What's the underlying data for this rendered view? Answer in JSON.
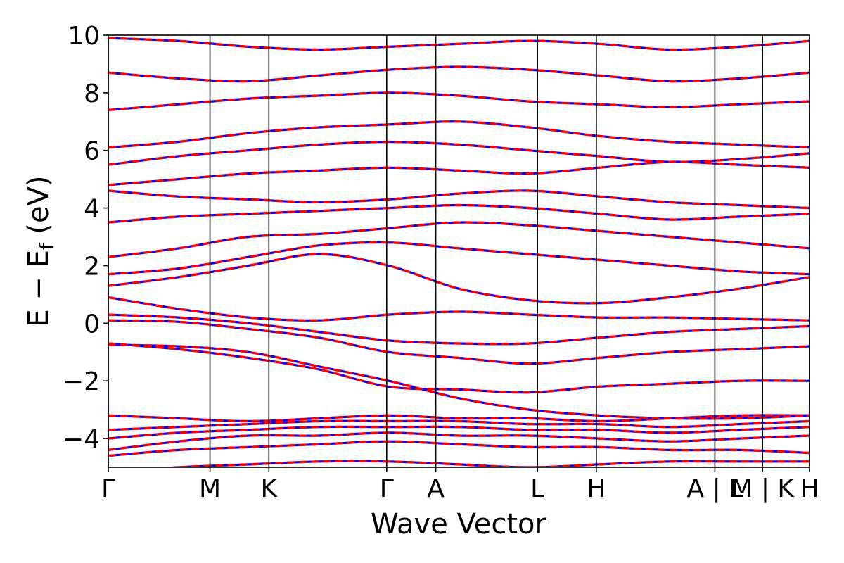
{
  "chart_data": {
    "type": "line",
    "title": "",
    "xlabel": "Wave Vector",
    "ylabel": "E − E_f (eV)",
    "ylabel_parts": {
      "main": "E − E",
      "sub": "f",
      "unit": " (eV)"
    },
    "ylim": [
      -5,
      10
    ],
    "yticks": [
      10,
      8,
      6,
      4,
      2,
      0,
      -2,
      -4
    ],
    "ytick_labels": [
      "10",
      "8",
      "6",
      "4",
      "2",
      "0",
      "−2",
      "−4"
    ],
    "kpath_ticks": [
      {
        "label": "Γ",
        "k": 0.0
      },
      {
        "label": "M",
        "k": 0.145
      },
      {
        "label": "K",
        "k": 0.229
      },
      {
        "label": "Γ",
        "k": 0.397
      },
      {
        "label": "A",
        "k": 0.467
      },
      {
        "label": "L",
        "k": 0.612
      },
      {
        "label": "H",
        "k": 0.696
      },
      {
        "label": "A | L",
        "k": 0.865
      },
      {
        "label": "M | K",
        "k": 0.933
      },
      {
        "label": "H",
        "k": 1.0
      }
    ],
    "xlim": [
      0,
      1
    ],
    "grid": false,
    "legend": "none",
    "series_styles": [
      {
        "role": "base",
        "color": "#0000ff"
      },
      {
        "role": "overlay",
        "color": "#ff0000",
        "dash": "dashed"
      }
    ],
    "bands": [
      {
        "name": "b01",
        "values": [
          -4.6,
          -4.4,
          -4.3,
          -4.2,
          -4.1,
          -4.2,
          -4.3,
          -4.3,
          -4.4,
          -4.4,
          -4.5
        ]
      },
      {
        "name": "b02",
        "values": [
          -4.4,
          -4.1,
          -3.9,
          -3.9,
          -3.8,
          -3.9,
          -3.9,
          -4.0,
          -4.1,
          -4.0,
          -3.9
        ]
      },
      {
        "name": "b03",
        "values": [
          -4.0,
          -3.8,
          -3.7,
          -3.6,
          -3.6,
          -3.6,
          -3.7,
          -3.7,
          -3.8,
          -3.7,
          -3.6
        ]
      },
      {
        "name": "b04",
        "values": [
          -3.7,
          -3.6,
          -3.5,
          -3.4,
          -3.4,
          -3.4,
          -3.5,
          -3.5,
          -3.6,
          -3.5,
          -3.4
        ]
      },
      {
        "name": "b05",
        "values": [
          -3.2,
          -3.3,
          -3.4,
          -3.3,
          -3.2,
          -3.3,
          -3.3,
          -3.4,
          -3.3,
          -3.2,
          -3.2
        ]
      },
      {
        "name": "b06",
        "values": [
          -0.75,
          -0.8,
          -1.0,
          -1.5,
          -2.0,
          -2.6,
          -3.0,
          -3.2,
          -3.3,
          -3.3,
          -3.2
        ]
      },
      {
        "name": "b07",
        "values": [
          -0.7,
          -0.9,
          -1.2,
          -1.6,
          -2.2,
          -2.3,
          -2.4,
          -2.2,
          -2.1,
          -2.0,
          -2.0
        ]
      },
      {
        "name": "b08",
        "values": [
          0.1,
          0.05,
          -0.2,
          -0.5,
          -1.0,
          -1.2,
          -1.4,
          -1.2,
          -1.0,
          -0.9,
          -0.8
        ]
      },
      {
        "name": "b09",
        "values": [
          0.3,
          0.2,
          0.0,
          -0.3,
          -0.6,
          -0.7,
          -0.7,
          -0.5,
          -0.3,
          -0.2,
          -0.1
        ]
      },
      {
        "name": "b10",
        "values": [
          0.9,
          0.5,
          0.2,
          0.1,
          0.3,
          0.4,
          0.3,
          0.2,
          0.2,
          0.15,
          0.1
        ]
      },
      {
        "name": "b11",
        "values": [
          1.3,
          1.6,
          2.0,
          2.4,
          2.0,
          1.2,
          0.8,
          0.7,
          0.9,
          1.2,
          1.6
        ]
      },
      {
        "name": "b12",
        "values": [
          1.7,
          1.9,
          2.3,
          2.7,
          2.8,
          2.6,
          2.4,
          2.2,
          2.0,
          1.8,
          1.7
        ]
      },
      {
        "name": "b13",
        "values": [
          2.3,
          2.6,
          3.0,
          3.1,
          3.3,
          3.5,
          3.4,
          3.2,
          3.0,
          2.8,
          2.6
        ]
      },
      {
        "name": "b14",
        "values": [
          3.5,
          3.7,
          3.8,
          3.9,
          4.0,
          4.1,
          4.0,
          3.8,
          3.6,
          3.7,
          3.8
        ]
      },
      {
        "name": "b15",
        "values": [
          4.6,
          4.4,
          4.3,
          4.2,
          4.3,
          4.5,
          4.6,
          4.4,
          4.2,
          4.1,
          4.0
        ]
      },
      {
        "name": "b16",
        "values": [
          4.8,
          5.0,
          5.2,
          5.3,
          5.4,
          5.3,
          5.2,
          5.4,
          5.6,
          5.5,
          5.4
        ]
      },
      {
        "name": "b17",
        "values": [
          5.5,
          5.8,
          6.0,
          6.2,
          6.3,
          6.2,
          6.0,
          5.8,
          5.6,
          5.7,
          5.9
        ]
      },
      {
        "name": "b18",
        "values": [
          6.1,
          6.3,
          6.6,
          6.8,
          6.9,
          7.0,
          6.8,
          6.5,
          6.3,
          6.2,
          6.1
        ]
      },
      {
        "name": "b19",
        "values": [
          7.4,
          7.6,
          7.8,
          7.9,
          8.0,
          7.9,
          7.7,
          7.6,
          7.5,
          7.6,
          7.7
        ]
      },
      {
        "name": "b20",
        "values": [
          8.7,
          8.5,
          8.4,
          8.6,
          8.8,
          8.9,
          8.8,
          8.6,
          8.4,
          8.5,
          8.7
        ]
      },
      {
        "name": "b21",
        "values": [
          9.9,
          9.8,
          9.6,
          9.5,
          9.6,
          9.7,
          9.8,
          9.7,
          9.5,
          9.6,
          9.8
        ]
      },
      {
        "name": "b22",
        "values": [
          -5.2,
          -5.0,
          -4.9,
          -4.8,
          -4.8,
          -4.9,
          -5.0,
          -4.9,
          -4.8,
          -4.8,
          -4.8
        ]
      }
    ]
  }
}
